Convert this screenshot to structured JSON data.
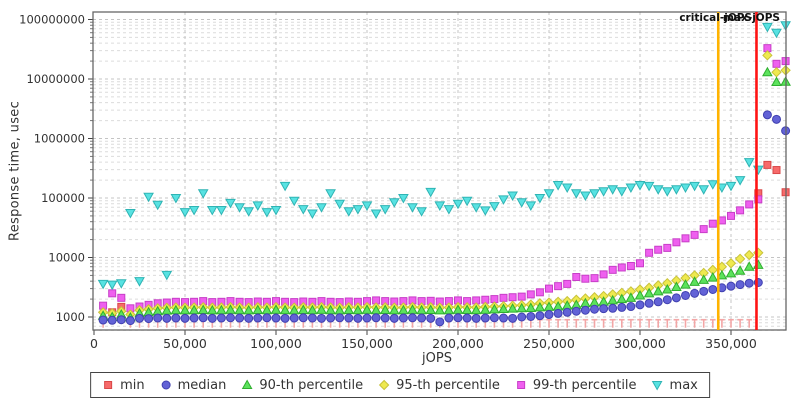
{
  "y_axis": {
    "label": "Response time, usec",
    "scale": "log",
    "ticks": [
      {
        "value": 1000,
        "label": "1000"
      },
      {
        "value": 10000,
        "label": "10000"
      },
      {
        "value": 100000,
        "label": "100000"
      },
      {
        "value": 1000000,
        "label": "1000000"
      },
      {
        "value": 10000000,
        "label": "10000000"
      },
      {
        "value": 100000000,
        "label": "100000000"
      }
    ]
  },
  "x_axis": {
    "label": "jOPS",
    "ticks": [
      {
        "value": 0,
        "label": "0"
      },
      {
        "value": 50000,
        "label": "50,000"
      },
      {
        "value": 100000,
        "label": "100,000"
      },
      {
        "value": 150000,
        "label": "150,000"
      },
      {
        "value": 200000,
        "label": "200,000"
      },
      {
        "value": 250000,
        "label": "250,000"
      },
      {
        "value": 300000,
        "label": "300,000"
      },
      {
        "value": 350000,
        "label": "350,000"
      }
    ]
  },
  "annotations": {
    "critical": {
      "label": "critical-jOPS",
      "jops": 343000,
      "color": "#ffb300"
    },
    "max": {
      "label": "max-jOPS",
      "jops": 364000,
      "color": "#ff1414"
    }
  },
  "colors": {
    "grid_minor": "#dcdcdc",
    "grid_major": "#c4c4c4",
    "plot_border": "#666666",
    "text": "#333333"
  },
  "chart_data": {
    "type": "scatter",
    "xlabel": "jOPS",
    "ylabel": "Response time, usec",
    "yscale": "log",
    "xlim": [
      0,
      380000
    ],
    "ylim": [
      600,
      140000000
    ],
    "grid": true,
    "legend_position": "bottom-center",
    "x": [
      5000,
      10000,
      15000,
      20000,
      25000,
      30000,
      35000,
      40000,
      45000,
      50000,
      55000,
      60000,
      65000,
      70000,
      75000,
      80000,
      85000,
      90000,
      95000,
      100000,
      105000,
      110000,
      115000,
      120000,
      125000,
      130000,
      135000,
      140000,
      145000,
      150000,
      155000,
      160000,
      165000,
      170000,
      175000,
      180000,
      185000,
      190000,
      195000,
      200000,
      205000,
      210000,
      215000,
      220000,
      225000,
      230000,
      235000,
      240000,
      245000,
      250000,
      255000,
      260000,
      265000,
      270000,
      275000,
      280000,
      285000,
      290000,
      295000,
      300000,
      305000,
      310000,
      315000,
      320000,
      325000,
      330000,
      335000,
      340000,
      345000,
      350000,
      355000,
      360000,
      365000,
      370000,
      375000,
      380000
    ],
    "series": [
      {
        "name": "min",
        "marker": "square-stem",
        "color": "#f76a6a",
        "stroke": "#d84848",
        "stem_color": "#f3a6a6",
        "values": [
          900,
          1200,
          1480,
          900,
          900,
          900,
          900,
          900,
          900,
          900,
          900,
          900,
          900,
          900,
          900,
          900,
          900,
          900,
          900,
          900,
          900,
          900,
          900,
          900,
          900,
          900,
          900,
          900,
          900,
          900,
          900,
          900,
          900,
          900,
          900,
          900,
          900,
          900,
          900,
          900,
          900,
          900,
          900,
          900,
          900,
          900,
          900,
          900,
          900,
          900,
          900,
          900,
          900,
          900,
          900,
          900,
          900,
          900,
          900,
          900,
          900,
          900,
          900,
          900,
          900,
          900,
          900,
          900,
          900,
          900,
          900,
          900,
          120000,
          360000,
          295000,
          125000
        ]
      },
      {
        "name": "median",
        "marker": "circle",
        "color": "#6262d6",
        "stroke": "#4040b0",
        "values": [
          890,
          880,
          900,
          870,
          950,
          940,
          960,
          950,
          960,
          950,
          960,
          970,
          950,
          960,
          970,
          960,
          950,
          960,
          970,
          960,
          950,
          960,
          970,
          960,
          950,
          960,
          970,
          960,
          950,
          960,
          970,
          960,
          950,
          960,
          970,
          960,
          950,
          830,
          960,
          970,
          960,
          950,
          960,
          970,
          960,
          950,
          1000,
          1020,
          1050,
          1100,
          1150,
          1200,
          1250,
          1300,
          1350,
          1380,
          1400,
          1450,
          1500,
          1600,
          1700,
          1800,
          1950,
          2100,
          2300,
          2500,
          2700,
          2900,
          3100,
          3300,
          3500,
          3700,
          3800,
          2500000,
          2100000,
          1350000
        ]
      },
      {
        "name": "90-th percentile",
        "marker": "triangle-up",
        "color": "#5ce25c",
        "stroke": "#2fae2f",
        "values": [
          1050,
          1000,
          1100,
          980,
          1150,
          1200,
          1250,
          1280,
          1300,
          1290,
          1300,
          1310,
          1290,
          1300,
          1320,
          1300,
          1290,
          1310,
          1300,
          1320,
          1300,
          1290,
          1310,
          1300,
          1320,
          1300,
          1290,
          1310,
          1300,
          1320,
          1300,
          1310,
          1290,
          1300,
          1320,
          1300,
          1310,
          1290,
          1300,
          1320,
          1310,
          1300,
          1320,
          1340,
          1360,
          1380,
          1400,
          1420,
          1450,
          1480,
          1500,
          1550,
          1600,
          1700,
          1750,
          1800,
          1900,
          2000,
          2100,
          2300,
          2500,
          2700,
          2900,
          3200,
          3500,
          3900,
          4200,
          4600,
          5000,
          5400,
          6000,
          7000,
          7500,
          13000000,
          8900000,
          9000000
        ]
      },
      {
        "name": "95-th percentile",
        "marker": "diamond",
        "color": "#efe94f",
        "stroke": "#c8c23a",
        "values": [
          1200,
          1150,
          1250,
          1100,
          1300,
          1350,
          1400,
          1430,
          1450,
          1440,
          1450,
          1460,
          1440,
          1450,
          1470,
          1450,
          1440,
          1460,
          1450,
          1470,
          1450,
          1440,
          1460,
          1450,
          1470,
          1450,
          1440,
          1460,
          1450,
          1470,
          1450,
          1460,
          1440,
          1450,
          1470,
          1450,
          1460,
          1440,
          1450,
          1470,
          1460,
          1450,
          1480,
          1500,
          1520,
          1550,
          1580,
          1620,
          1700,
          1750,
          1800,
          1850,
          1950,
          2050,
          2150,
          2250,
          2400,
          2550,
          2700,
          2900,
          3100,
          3400,
          3700,
          4100,
          4500,
          5000,
          5500,
          6200,
          7000,
          8000,
          9500,
          11000,
          12000,
          25000000,
          13000000,
          14000000
        ]
      },
      {
        "name": "99-th percentile",
        "marker": "square",
        "color": "#ef5fef",
        "stroke": "#c73fc7",
        "values": [
          1550,
          2500,
          2100,
          1400,
          1500,
          1600,
          1700,
          1750,
          1800,
          1780,
          1800,
          1850,
          1780,
          1800,
          1850,
          1800,
          1780,
          1820,
          1800,
          1850,
          1800,
          1780,
          1820,
          1800,
          1850,
          1800,
          1780,
          1820,
          1800,
          1850,
          1900,
          1850,
          1820,
          1850,
          1900,
          1850,
          1870,
          1820,
          1850,
          1900,
          1850,
          1900,
          1950,
          2000,
          2100,
          2150,
          2200,
          2400,
          2600,
          3000,
          3300,
          3600,
          4700,
          4400,
          4500,
          5200,
          6200,
          6800,
          7200,
          8000,
          12000,
          13500,
          14500,
          18000,
          21000,
          24000,
          30000,
          37000,
          42000,
          50000,
          62000,
          78000,
          95000,
          33000000,
          18000000,
          20000000
        ]
      },
      {
        "name": "max",
        "marker": "triangle-down",
        "color": "#58e2e2",
        "stroke": "#2fb4b4",
        "values": [
          3600,
          3500,
          3700,
          56000,
          4000,
          105000,
          77000,
          5100,
          100000,
          58000,
          63000,
          120000,
          63000,
          63000,
          83000,
          70000,
          60000,
          75000,
          58000,
          63000,
          160000,
          90000,
          65000,
          55000,
          70000,
          120000,
          80000,
          60000,
          65000,
          75000,
          55000,
          65000,
          85000,
          100000,
          70000,
          60000,
          127000,
          75000,
          65000,
          80000,
          90000,
          70000,
          62000,
          73000,
          95000,
          110000,
          85000,
          75000,
          100000,
          120000,
          165000,
          150000,
          120000,
          110000,
          120000,
          130000,
          140000,
          130000,
          150000,
          165000,
          160000,
          140000,
          130000,
          140000,
          150000,
          160000,
          140000,
          170000,
          150000,
          160000,
          200000,
          400000,
          300000,
          75000000,
          60000000,
          80000000
        ]
      }
    ]
  },
  "legend": {
    "items": [
      "min",
      "median",
      "90-th percentile",
      "95-th percentile",
      "99-th percentile",
      "max"
    ]
  }
}
